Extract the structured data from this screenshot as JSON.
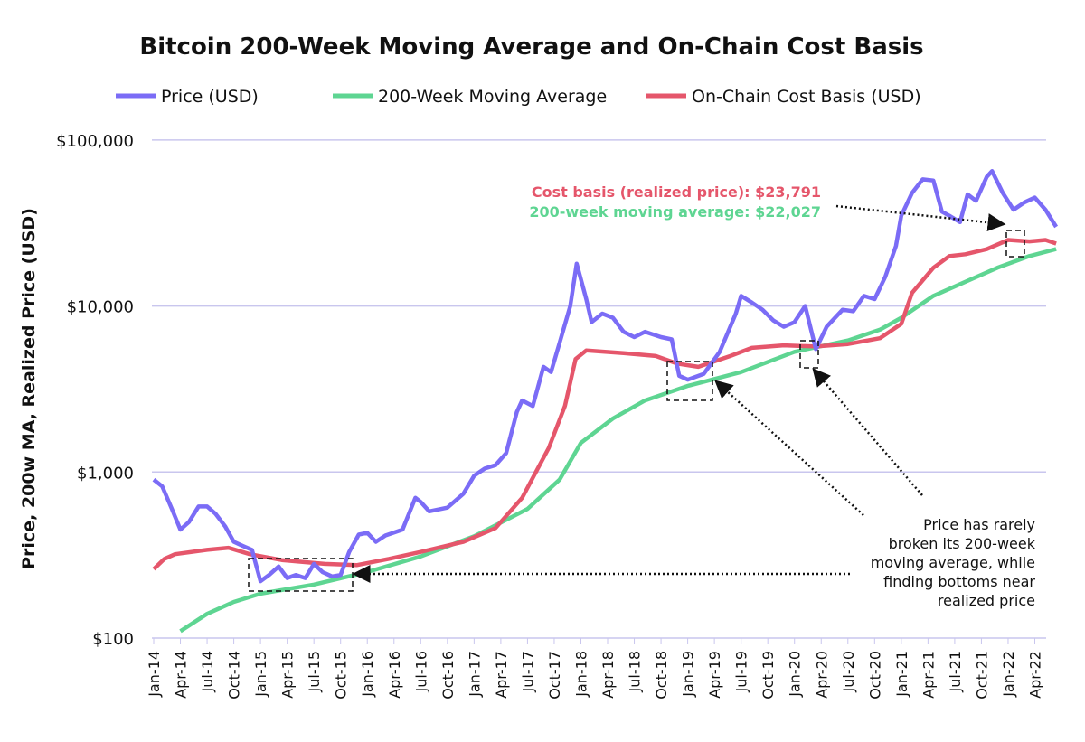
{
  "chart_data": {
    "type": "line",
    "title": "Bitcoin 200-Week Moving Average and On-Chain Cost Basis",
    "ylabel": "Price, 200w MA, Realized Price (USD)",
    "yscale": "log",
    "ylim": [
      100,
      100000
    ],
    "yticks": [
      {
        "v": 100,
        "label": "$100"
      },
      {
        "v": 1000,
        "label": "$1,000"
      },
      {
        "v": 10000,
        "label": "$10,000"
      },
      {
        "v": 100000,
        "label": "$100,000"
      }
    ],
    "xlim": [
      2014.0,
      2022.5
    ],
    "xticks": [
      "Jan-14",
      "Apr-14",
      "Jul-14",
      "Oct-14",
      "Jan-15",
      "Apr-15",
      "Jul-15",
      "Oct-15",
      "Jan-16",
      "Apr-16",
      "Jul-16",
      "Oct-16",
      "Jan-17",
      "Apr-17",
      "Jul-17",
      "Oct-17",
      "Jan-18",
      "Apr-18",
      "Jul-18",
      "Oct-18",
      "Jan-19",
      "Apr-19",
      "Jul-19",
      "Oct-19",
      "Jan-20",
      "Apr-20",
      "Jul-20",
      "Oct-20",
      "Jan-21",
      "Apr-21",
      "Jul-21",
      "Oct-21",
      "Jan-22",
      "Apr-22"
    ],
    "legend_position": "top",
    "series": [
      {
        "name": "Price (USD)",
        "color": "#7b6cf6",
        "points": [
          [
            2014.0,
            900
          ],
          [
            2014.08,
            820
          ],
          [
            2014.17,
            600
          ],
          [
            2014.25,
            450
          ],
          [
            2014.33,
            500
          ],
          [
            2014.42,
            620
          ],
          [
            2014.5,
            620
          ],
          [
            2014.58,
            560
          ],
          [
            2014.67,
            470
          ],
          [
            2014.75,
            380
          ],
          [
            2014.83,
            360
          ],
          [
            2014.92,
            340
          ],
          [
            2015.0,
            220
          ],
          [
            2015.08,
            240
          ],
          [
            2015.17,
            270
          ],
          [
            2015.25,
            230
          ],
          [
            2015.33,
            240
          ],
          [
            2015.42,
            230
          ],
          [
            2015.5,
            280
          ],
          [
            2015.58,
            250
          ],
          [
            2015.67,
            235
          ],
          [
            2015.75,
            240
          ],
          [
            2015.83,
            330
          ],
          [
            2015.92,
            420
          ],
          [
            2016.0,
            430
          ],
          [
            2016.08,
            380
          ],
          [
            2016.17,
            415
          ],
          [
            2016.33,
            450
          ],
          [
            2016.45,
            700
          ],
          [
            2016.5,
            660
          ],
          [
            2016.58,
            580
          ],
          [
            2016.75,
            610
          ],
          [
            2016.9,
            740
          ],
          [
            2017.0,
            950
          ],
          [
            2017.1,
            1050
          ],
          [
            2017.2,
            1100
          ],
          [
            2017.3,
            1300
          ],
          [
            2017.4,
            2300
          ],
          [
            2017.45,
            2700
          ],
          [
            2017.55,
            2500
          ],
          [
            2017.65,
            4300
          ],
          [
            2017.72,
            4000
          ],
          [
            2017.8,
            6000
          ],
          [
            2017.9,
            10000
          ],
          [
            2017.96,
            18000
          ],
          [
            2018.05,
            11000
          ],
          [
            2018.1,
            8000
          ],
          [
            2018.2,
            9000
          ],
          [
            2018.3,
            8500
          ],
          [
            2018.4,
            7000
          ],
          [
            2018.5,
            6500
          ],
          [
            2018.6,
            7000
          ],
          [
            2018.75,
            6500
          ],
          [
            2018.85,
            6300
          ],
          [
            2018.92,
            3800
          ],
          [
            2019.0,
            3600
          ],
          [
            2019.15,
            3900
          ],
          [
            2019.3,
            5300
          ],
          [
            2019.45,
            9000
          ],
          [
            2019.5,
            11500
          ],
          [
            2019.6,
            10500
          ],
          [
            2019.7,
            9500
          ],
          [
            2019.8,
            8200
          ],
          [
            2019.9,
            7500
          ],
          [
            2020.0,
            8000
          ],
          [
            2020.1,
            10000
          ],
          [
            2020.2,
            5500
          ],
          [
            2020.3,
            7500
          ],
          [
            2020.45,
            9500
          ],
          [
            2020.55,
            9300
          ],
          [
            2020.65,
            11500
          ],
          [
            2020.75,
            11000
          ],
          [
            2020.85,
            15000
          ],
          [
            2020.95,
            23000
          ],
          [
            2021.0,
            35000
          ],
          [
            2021.1,
            48000
          ],
          [
            2021.2,
            58000
          ],
          [
            2021.3,
            57000
          ],
          [
            2021.38,
            37000
          ],
          [
            2021.45,
            35000
          ],
          [
            2021.55,
            32000
          ],
          [
            2021.62,
            47000
          ],
          [
            2021.7,
            43000
          ],
          [
            2021.8,
            60000
          ],
          [
            2021.85,
            65000
          ],
          [
            2021.95,
            48000
          ],
          [
            2022.05,
            38000
          ],
          [
            2022.15,
            42000
          ],
          [
            2022.25,
            45000
          ],
          [
            2022.35,
            38000
          ],
          [
            2022.45,
            30000
          ]
        ]
      },
      {
        "name": "200-Week Moving Average",
        "color": "#5ed592",
        "points": [
          [
            2014.25,
            110
          ],
          [
            2014.5,
            140
          ],
          [
            2014.75,
            165
          ],
          [
            2015.0,
            185
          ],
          [
            2015.5,
            210
          ],
          [
            2016.0,
            250
          ],
          [
            2016.5,
            310
          ],
          [
            2017.0,
            410
          ],
          [
            2017.5,
            600
          ],
          [
            2017.8,
            900
          ],
          [
            2018.0,
            1500
          ],
          [
            2018.3,
            2100
          ],
          [
            2018.6,
            2700
          ],
          [
            2019.0,
            3300
          ],
          [
            2019.5,
            4000
          ],
          [
            2020.0,
            5300
          ],
          [
            2020.5,
            6200
          ],
          [
            2020.8,
            7200
          ],
          [
            2021.0,
            8500
          ],
          [
            2021.3,
            11500
          ],
          [
            2021.6,
            14000
          ],
          [
            2021.9,
            17000
          ],
          [
            2022.2,
            20000
          ],
          [
            2022.45,
            22027
          ]
        ]
      },
      {
        "name": "On-Chain Cost Basis (USD)",
        "color": "#e5566b",
        "points": [
          [
            2014.0,
            260
          ],
          [
            2014.1,
            300
          ],
          [
            2014.2,
            320
          ],
          [
            2014.5,
            340
          ],
          [
            2014.7,
            350
          ],
          [
            2014.9,
            320
          ],
          [
            2015.2,
            295
          ],
          [
            2015.6,
            280
          ],
          [
            2015.9,
            275
          ],
          [
            2016.2,
            300
          ],
          [
            2016.5,
            330
          ],
          [
            2016.9,
            380
          ],
          [
            2017.2,
            460
          ],
          [
            2017.45,
            700
          ],
          [
            2017.7,
            1400
          ],
          [
            2017.85,
            2500
          ],
          [
            2017.95,
            4800
          ],
          [
            2018.05,
            5400
          ],
          [
            2018.4,
            5200
          ],
          [
            2018.7,
            5000
          ],
          [
            2018.9,
            4500
          ],
          [
            2019.1,
            4300
          ],
          [
            2019.4,
            5000
          ],
          [
            2019.6,
            5600
          ],
          [
            2019.9,
            5800
          ],
          [
            2020.2,
            5700
          ],
          [
            2020.5,
            5900
          ],
          [
            2020.8,
            6400
          ],
          [
            2021.0,
            7800
          ],
          [
            2021.1,
            12000
          ],
          [
            2021.3,
            17000
          ],
          [
            2021.45,
            20000
          ],
          [
            2021.6,
            20500
          ],
          [
            2021.8,
            22000
          ],
          [
            2022.0,
            25000
          ],
          [
            2022.2,
            24500
          ],
          [
            2022.35,
            25000
          ],
          [
            2022.45,
            23791
          ]
        ]
      }
    ],
    "annotations": {
      "cost_basis_label": "Cost basis (realized price): $23,791",
      "ma_label": "200-week moving average: $22,027",
      "note_lines": [
        "Price has rarely",
        "broken its 200-week",
        "moving average, while",
        "finding bottoms near",
        "realized price"
      ]
    }
  }
}
